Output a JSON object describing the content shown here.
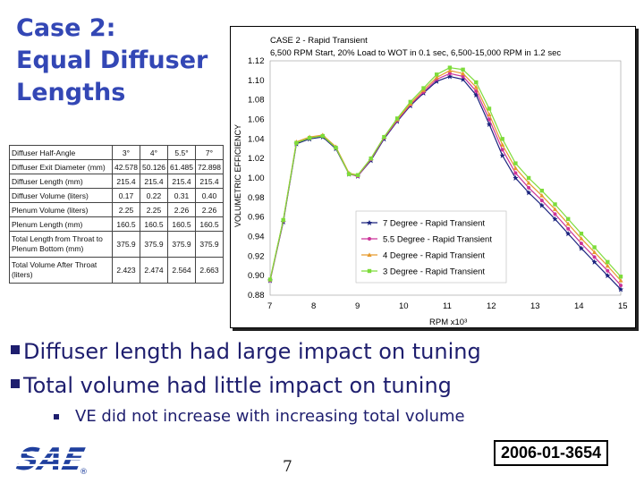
{
  "title": {
    "line1": "Case 2:",
    "line2": "Equal Diffuser",
    "line3": "Lengths"
  },
  "spec_table": {
    "rows": [
      {
        "label": "Diffuser Half-Angle",
        "values": [
          "3°",
          "4°",
          "5.5°",
          "7°"
        ]
      },
      {
        "label": "Diffuser Exit Diameter (mm)",
        "values": [
          "42.578",
          "50.126",
          "61.485",
          "72.898"
        ]
      },
      {
        "label": "Diffuser Length (mm)",
        "values": [
          "215.4",
          "215.4",
          "215.4",
          "215.4"
        ]
      },
      {
        "label": "Diffuser Volume (liters)",
        "values": [
          "0.17",
          "0.22",
          "0.31",
          "0.40"
        ]
      },
      {
        "label": "Plenum Volume (liters)",
        "values": [
          "2.25",
          "2.25",
          "2.26",
          "2.26"
        ]
      },
      {
        "label": "Plenum Length (mm)",
        "values": [
          "160.5",
          "160.5",
          "160.5",
          "160.5"
        ]
      },
      {
        "label": "Total Length from Throat to Plenum Bottom (mm)",
        "values": [
          "375.9",
          "375.9",
          "375.9",
          "375.9"
        ]
      },
      {
        "label": "Total Volume After Throat (liters)",
        "values": [
          "2.423",
          "2.474",
          "2.564",
          "2.663"
        ]
      }
    ]
  },
  "chart_data": {
    "type": "line",
    "title": "CASE 2 - Rapid Transient",
    "subtitle": "6,500 RPM Start, 20% Load to WOT in 0.1 sec, 6,500-15,000 RPM in 1.2 sec",
    "xlabel": "RPM x10³",
    "ylabel": "VOLUMETRIC EFFICIENCY",
    "xlim": [
      7,
      15
    ],
    "ylim": [
      0.88,
      1.12
    ],
    "xticks": [
      "7",
      "8",
      "9",
      "10",
      "11",
      "12",
      "13",
      "14",
      "15"
    ],
    "yticks": [
      "0.88",
      "0.90",
      "0.92",
      "0.94",
      "0.96",
      "0.98",
      "1.00",
      "1.02",
      "1.04",
      "1.06",
      "1.08",
      "1.10",
      "1.12"
    ],
    "legend_position": "bottom-right",
    "series": [
      {
        "name": "7 Degree - Rapid Transient",
        "color": "#1a237e",
        "marker": "star",
        "x": [
          7,
          7.3,
          7.6,
          7.9,
          8.2,
          8.5,
          8.8,
          9.0,
          9.3,
          9.6,
          9.9,
          10.2,
          10.5,
          10.8,
          11.1,
          11.4,
          11.7,
          12.0,
          12.3,
          12.6,
          12.9,
          13.2,
          13.5,
          13.8,
          14.1,
          14.4,
          14.7,
          15.0
        ],
        "y": [
          0.895,
          0.955,
          1.035,
          1.04,
          1.042,
          1.03,
          1.004,
          1.002,
          1.018,
          1.04,
          1.058,
          1.074,
          1.087,
          1.099,
          1.104,
          1.101,
          1.085,
          1.055,
          1.023,
          1.0,
          0.985,
          0.972,
          0.958,
          0.943,
          0.928,
          0.914,
          0.9,
          0.886
        ]
      },
      {
        "name": "5.5 Degree - Rapid Transient",
        "color": "#cc3399",
        "marker": "circle",
        "x": [
          7,
          7.3,
          7.6,
          7.9,
          8.2,
          8.5,
          8.8,
          9.0,
          9.3,
          9.6,
          9.9,
          10.2,
          10.5,
          10.8,
          11.1,
          11.4,
          11.7,
          12.0,
          12.3,
          12.6,
          12.9,
          13.2,
          13.5,
          13.8,
          14.1,
          14.4,
          14.7,
          15.0
        ],
        "y": [
          0.895,
          0.956,
          1.036,
          1.041,
          1.043,
          1.031,
          1.004,
          1.002,
          1.019,
          1.041,
          1.059,
          1.075,
          1.088,
          1.101,
          1.107,
          1.104,
          1.089,
          1.06,
          1.029,
          1.005,
          0.99,
          0.977,
          0.963,
          0.948,
          0.933,
          0.919,
          0.905,
          0.89
        ]
      },
      {
        "name": "4 Degree - Rapid Transient",
        "color": "#e69a2e",
        "marker": "triangle",
        "x": [
          7,
          7.3,
          7.6,
          7.9,
          8.2,
          8.5,
          8.8,
          9.0,
          9.3,
          9.6,
          9.9,
          10.2,
          10.5,
          10.8,
          11.1,
          11.4,
          11.7,
          12.0,
          12.3,
          12.6,
          12.9,
          13.2,
          13.5,
          13.8,
          14.1,
          14.4,
          14.7,
          15.0
        ],
        "y": [
          0.896,
          0.957,
          1.037,
          1.042,
          1.044,
          1.032,
          1.005,
          1.003,
          1.02,
          1.042,
          1.06,
          1.076,
          1.09,
          1.103,
          1.11,
          1.107,
          1.093,
          1.065,
          1.034,
          1.01,
          0.995,
          0.982,
          0.968,
          0.953,
          0.938,
          0.924,
          0.91,
          0.895
        ]
      },
      {
        "name": "3 Degree - Rapid Transient",
        "color": "#7ddc3a",
        "marker": "square",
        "x": [
          7,
          7.3,
          7.6,
          7.9,
          8.2,
          8.5,
          8.8,
          9.0,
          9.3,
          9.6,
          9.9,
          10.2,
          10.5,
          10.8,
          11.1,
          11.4,
          11.7,
          12.0,
          12.3,
          12.6,
          12.9,
          13.2,
          13.5,
          13.8,
          14.1,
          14.4,
          14.7,
          15.0
        ],
        "y": [
          0.896,
          0.957,
          1.036,
          1.041,
          1.043,
          1.031,
          1.004,
          1.003,
          1.02,
          1.042,
          1.061,
          1.078,
          1.092,
          1.106,
          1.113,
          1.111,
          1.098,
          1.071,
          1.04,
          1.015,
          1.0,
          0.987,
          0.973,
          0.958,
          0.943,
          0.929,
          0.914,
          0.899
        ]
      }
    ]
  },
  "bullets": {
    "item1": "Diffuser length had large impact on tuning",
    "item2": "Total volume had little impact on tuning",
    "sub1": "VE did not increase with increasing total volume"
  },
  "footer": {
    "logo_text": "SAE",
    "registered": "®",
    "page_number": "7",
    "paper_id": "2006-01-3654"
  }
}
